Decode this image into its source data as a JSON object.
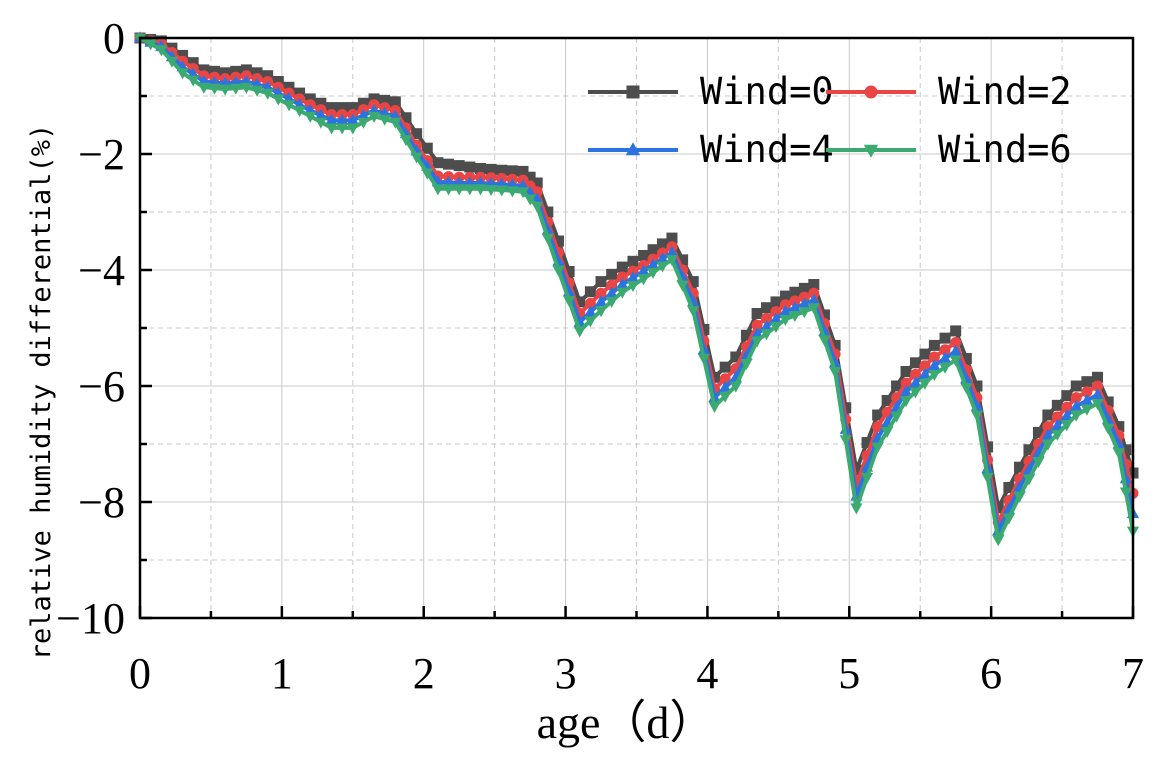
{
  "chart_data": {
    "type": "line",
    "title": "",
    "xlabel": "age（d）",
    "ylabel": "relative humidity differential(%)",
    "xlim": [
      0,
      7
    ],
    "ylim": [
      -10,
      0
    ],
    "xticks": [
      "0",
      "1",
      "2",
      "3",
      "4",
      "5",
      "6",
      "7"
    ],
    "yticks": [
      "0",
      "−2",
      "−4",
      "−6",
      "−8",
      "−10"
    ],
    "grid": true,
    "legend_position": "top-right",
    "x": [
      0,
      0.15,
      0.3,
      0.45,
      0.6,
      0.75,
      0.9,
      1.05,
      1.2,
      1.35,
      1.5,
      1.65,
      1.8,
      1.95,
      2.1,
      2.25,
      2.4,
      2.55,
      2.7,
      2.8,
      2.95,
      3.1,
      3.25,
      3.4,
      3.55,
      3.75,
      3.9,
      4.05,
      4.2,
      4.35,
      4.55,
      4.75,
      4.9,
      5.05,
      5.2,
      5.4,
      5.6,
      5.75,
      5.9,
      6.05,
      6.2,
      6.4,
      6.6,
      6.75,
      6.9,
      7.0
    ],
    "series": [
      {
        "name": "Wind=0",
        "color": "#4d4d4d",
        "marker": "square",
        "values": [
          0,
          -0.05,
          -0.3,
          -0.55,
          -0.6,
          -0.55,
          -0.65,
          -0.85,
          -1.05,
          -1.2,
          -1.2,
          -1.05,
          -1.1,
          -1.65,
          -2.15,
          -2.2,
          -2.25,
          -2.28,
          -2.3,
          -2.5,
          -3.5,
          -4.55,
          -4.2,
          -3.95,
          -3.75,
          -3.45,
          -4.2,
          -5.85,
          -5.5,
          -4.75,
          -4.45,
          -4.25,
          -5.3,
          -7.45,
          -6.5,
          -5.75,
          -5.3,
          -5.05,
          -6.0,
          -8.1,
          -7.4,
          -6.5,
          -6.0,
          -5.85,
          -6.7,
          -7.5
        ]
      },
      {
        "name": "Wind=2",
        "color": "#e94545",
        "marker": "circle",
        "values": [
          0,
          -0.1,
          -0.4,
          -0.65,
          -0.7,
          -0.65,
          -0.75,
          -0.95,
          -1.15,
          -1.32,
          -1.32,
          -1.15,
          -1.25,
          -1.85,
          -2.38,
          -2.4,
          -2.4,
          -2.42,
          -2.45,
          -2.65,
          -3.7,
          -4.75,
          -4.4,
          -4.12,
          -3.92,
          -3.6,
          -4.4,
          -6.05,
          -5.7,
          -4.95,
          -4.6,
          -4.4,
          -5.45,
          -7.7,
          -6.7,
          -5.95,
          -5.5,
          -5.25,
          -6.2,
          -8.35,
          -7.6,
          -6.7,
          -6.2,
          -6.0,
          -6.85,
          -7.85
        ]
      },
      {
        "name": "Wind=4",
        "color": "#2b73e0",
        "marker": "triangle-up",
        "values": [
          0,
          -0.15,
          -0.5,
          -0.75,
          -0.78,
          -0.75,
          -0.85,
          -1.05,
          -1.25,
          -1.42,
          -1.42,
          -1.25,
          -1.35,
          -1.95,
          -2.48,
          -2.5,
          -2.5,
          -2.52,
          -2.55,
          -2.78,
          -3.85,
          -4.9,
          -4.55,
          -4.25,
          -4.02,
          -3.7,
          -4.55,
          -6.2,
          -5.85,
          -5.1,
          -4.72,
          -4.52,
          -5.6,
          -7.9,
          -6.9,
          -6.1,
          -5.65,
          -5.4,
          -6.35,
          -8.5,
          -7.75,
          -6.85,
          -6.35,
          -6.15,
          -7.0,
          -8.2
        ]
      },
      {
        "name": "Wind=6",
        "color": "#3aaa70",
        "marker": "triangle-down",
        "values": [
          0,
          -0.2,
          -0.6,
          -0.85,
          -0.88,
          -0.85,
          -0.95,
          -1.15,
          -1.35,
          -1.55,
          -1.55,
          -1.35,
          -1.45,
          -2.05,
          -2.6,
          -2.6,
          -2.6,
          -2.62,
          -2.65,
          -2.9,
          -4.0,
          -5.05,
          -4.7,
          -4.38,
          -4.15,
          -3.82,
          -4.7,
          -6.35,
          -6.0,
          -5.22,
          -4.85,
          -4.65,
          -5.75,
          -8.1,
          -7.05,
          -6.25,
          -5.8,
          -5.55,
          -6.5,
          -8.65,
          -7.9,
          -7.0,
          -6.5,
          -6.3,
          -7.15,
          -8.5
        ]
      }
    ]
  }
}
